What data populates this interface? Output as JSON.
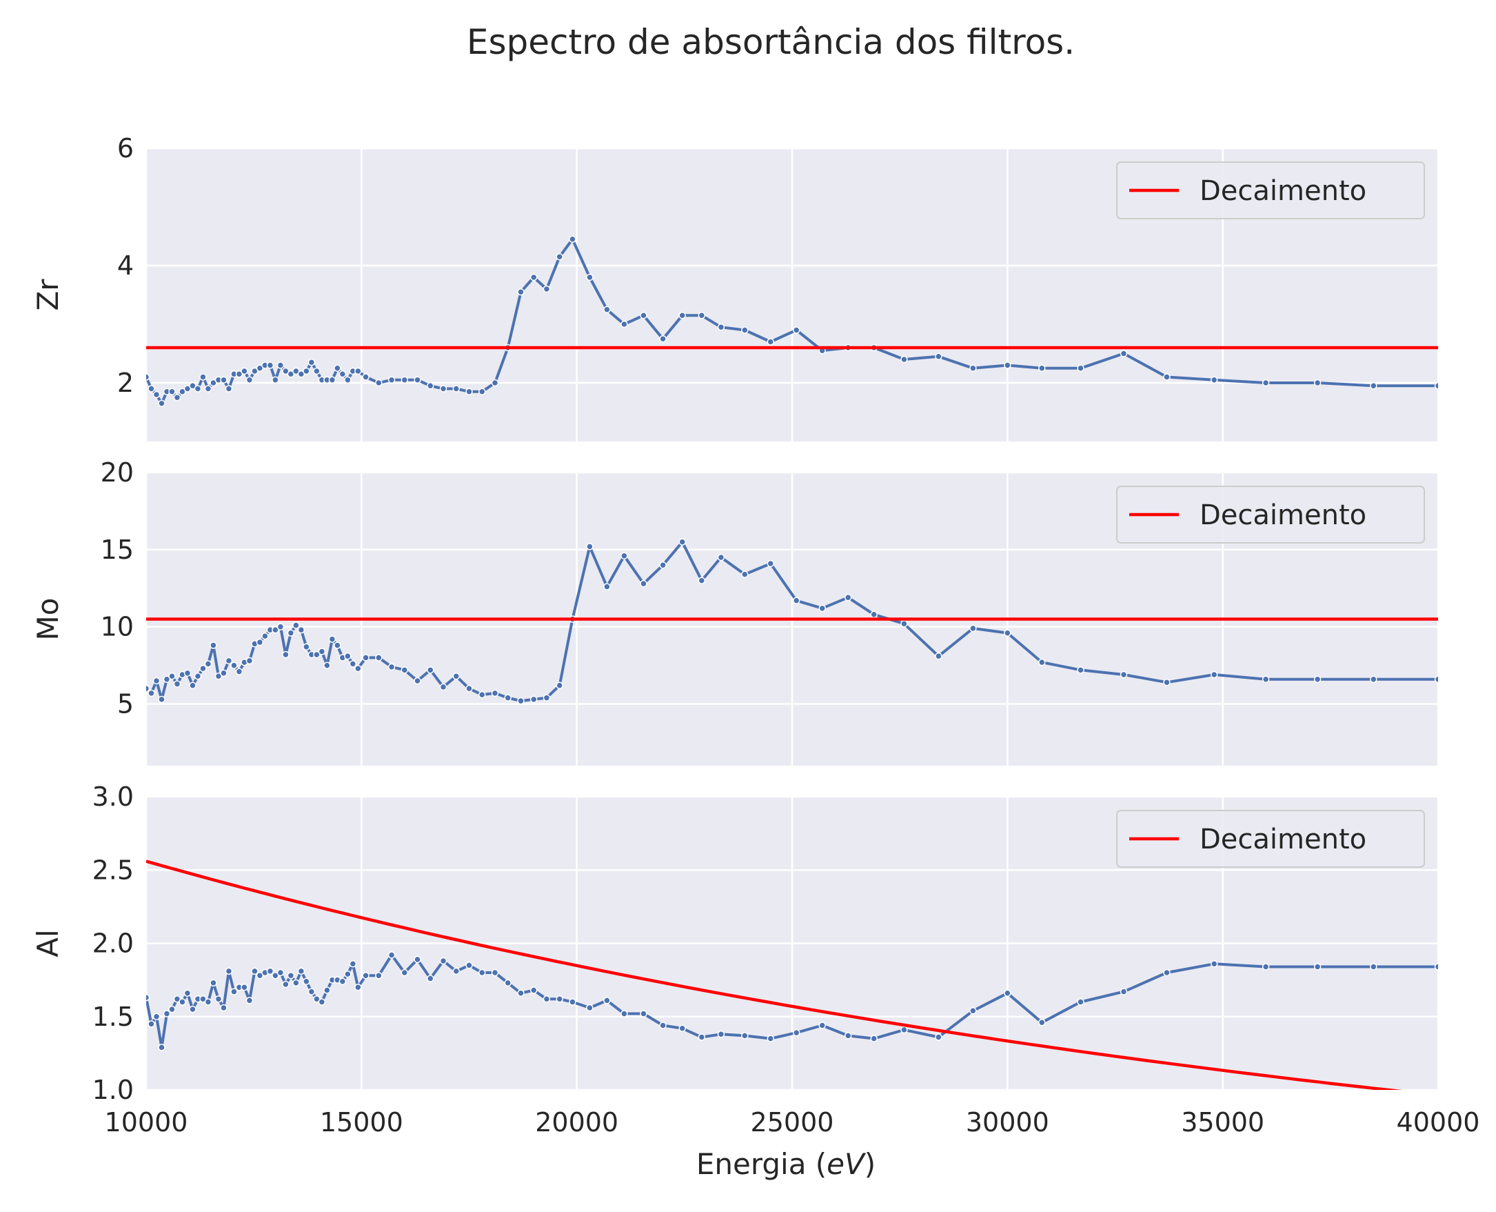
{
  "chart_data": {
    "type": "line",
    "title": "Espectro de absortância dos filtros.",
    "xlabel": "Energia (eV)",
    "xlabel_parts": {
      "prefix": "Energia (",
      "unit": "eV",
      "suffix": ")"
    },
    "xlim": [
      10000,
      40000
    ],
    "xticks": [
      10000,
      15000,
      20000,
      25000,
      30000,
      35000,
      40000
    ],
    "grid": true,
    "legend_position": "upper right",
    "colors": {
      "data": "#4c72b0",
      "decay": "#ff0000",
      "panel_bg": "#eaeaf2",
      "grid": "#ffffff"
    },
    "panels": [
      {
        "ylabel": "Zr",
        "ylim": [
          1,
          6
        ],
        "yticks": [
          2,
          4,
          6
        ],
        "legend": "Decaimento",
        "decay": {
          "kind": "constant",
          "value": 2.6
        },
        "series": [
          {
            "x": [
              10000,
              10120,
              10240,
              10360,
              10480,
              10600,
              10720,
              10840,
              10960,
              11080,
              11200,
              11320,
              11440,
              11560,
              11680,
              11800,
              11920,
              12040,
              12160,
              12280,
              12400,
              12520,
              12640,
              12760,
              12880,
              13000,
              13120,
              13240,
              13360,
              13480,
              13600,
              13720,
              13840,
              13960,
              14080,
              14200,
              14320,
              14440,
              14560,
              14680,
              14800,
              14920,
              15100,
              15400,
              15700,
              16000,
              16300,
              16600,
              16900,
              17200,
              17500,
              17800,
              18100,
              18400,
              18700,
              19000,
              19300,
              19600,
              19900,
              20300,
              20700,
              21100,
              21550,
              22000,
              22450,
              22900,
              23350,
              23900,
              24500,
              25100,
              25700,
              26300,
              26900,
              27600,
              28400,
              29200,
              30000,
              30800,
              31700,
              32700,
              33700,
              34800,
              36000,
              37200,
              38500,
              40000
            ],
            "y": [
              2.1,
              1.9,
              1.8,
              1.65,
              1.85,
              1.85,
              1.75,
              1.85,
              1.9,
              1.95,
              1.9,
              2.1,
              1.9,
              2.0,
              2.05,
              2.05,
              1.9,
              2.15,
              2.15,
              2.2,
              2.05,
              2.2,
              2.25,
              2.3,
              2.3,
              2.05,
              2.3,
              2.2,
              2.15,
              2.2,
              2.15,
              2.2,
              2.35,
              2.2,
              2.05,
              2.05,
              2.05,
              2.25,
              2.15,
              2.05,
              2.2,
              2.2,
              2.1,
              2.0,
              2.05,
              2.05,
              2.05,
              1.95,
              1.9,
              1.9,
              1.85,
              1.85,
              2.0,
              2.6,
              3.55,
              3.8,
              3.6,
              4.15,
              4.45,
              3.8,
              3.25,
              3.0,
              3.15,
              2.75,
              3.15,
              3.15,
              2.95,
              2.9,
              2.7,
              2.9,
              2.55,
              2.6,
              2.6,
              2.4,
              2.45,
              2.25,
              2.3,
              2.25,
              2.25,
              2.5,
              2.1,
              2.05,
              2.0,
              2.0,
              1.95,
              1.95
            ]
          }
        ]
      },
      {
        "ylabel": "Mo",
        "ylim": [
          1,
          20
        ],
        "yticks": [
          5,
          10,
          15,
          20
        ],
        "legend": "Decaimento",
        "decay": {
          "kind": "constant",
          "value": 10.5
        },
        "series": [
          {
            "x": [
              10000,
              10120,
              10240,
              10360,
              10480,
              10600,
              10720,
              10840,
              10960,
              11080,
              11200,
              11320,
              11440,
              11560,
              11680,
              11800,
              11920,
              12040,
              12160,
              12280,
              12400,
              12520,
              12640,
              12760,
              12880,
              13000,
              13120,
              13240,
              13360,
              13480,
              13600,
              13720,
              13840,
              13960,
              14080,
              14200,
              14320,
              14440,
              14560,
              14680,
              14800,
              14920,
              15100,
              15400,
              15700,
              16000,
              16300,
              16600,
              16900,
              17200,
              17500,
              17800,
              18100,
              18400,
              18700,
              19000,
              19300,
              19600,
              19900,
              20300,
              20700,
              21100,
              21550,
              22000,
              22450,
              22900,
              23350,
              23900,
              24500,
              25100,
              25700,
              26300,
              26900,
              27600,
              28400,
              29200,
              30000,
              30800,
              31700,
              32700,
              33700,
              34800,
              36000,
              37200,
              38500,
              40000
            ],
            "y": [
              6.0,
              5.7,
              6.5,
              5.3,
              6.6,
              6.8,
              6.3,
              6.9,
              7.0,
              6.2,
              6.8,
              7.3,
              7.6,
              8.8,
              6.8,
              7.0,
              7.8,
              7.5,
              7.1,
              7.7,
              7.8,
              8.9,
              9.0,
              9.4,
              9.8,
              9.8,
              10.0,
              8.2,
              9.6,
              10.1,
              9.8,
              8.7,
              8.2,
              8.2,
              8.4,
              7.5,
              9.2,
              8.8,
              8.0,
              8.1,
              7.6,
              7.3,
              8.0,
              8.0,
              7.4,
              7.2,
              6.5,
              7.2,
              6.1,
              6.8,
              6.0,
              5.6,
              5.7,
              5.4,
              5.2,
              5.3,
              5.4,
              6.2,
              10.5,
              15.2,
              12.6,
              14.6,
              12.8,
              14.0,
              15.5,
              13.0,
              14.5,
              13.4,
              14.1,
              11.7,
              11.2,
              11.9,
              10.8,
              10.2,
              8.1,
              9.9,
              9.6,
              7.7,
              7.2,
              6.9,
              6.4,
              6.9,
              6.6,
              6.6,
              6.6,
              6.6
            ]
          }
        ]
      },
      {
        "ylabel": "Al",
        "ylim": [
          1.0,
          3.0
        ],
        "yticks": [
          1.0,
          1.5,
          2.0,
          2.5,
          3.0
        ],
        "legend": "Decaimento",
        "decay": {
          "kind": "exponential",
          "x0": 10000,
          "y0": 2.56,
          "rate_per_eV": 3.26e-05
        },
        "series": [
          {
            "x": [
              10000,
              10120,
              10240,
              10360,
              10480,
              10600,
              10720,
              10840,
              10960,
              11080,
              11200,
              11320,
              11440,
              11560,
              11680,
              11800,
              11920,
              12040,
              12160,
              12280,
              12400,
              12520,
              12640,
              12760,
              12880,
              13000,
              13120,
              13240,
              13360,
              13480,
              13600,
              13720,
              13840,
              13960,
              14080,
              14200,
              14320,
              14440,
              14560,
              14680,
              14800,
              14920,
              15100,
              15400,
              15700,
              16000,
              16300,
              16600,
              16900,
              17200,
              17500,
              17800,
              18100,
              18400,
              18700,
              19000,
              19300,
              19600,
              19900,
              20300,
              20700,
              21100,
              21550,
              22000,
              22450,
              22900,
              23350,
              23900,
              24500,
              25100,
              25700,
              26300,
              26900,
              27600,
              28400,
              29200,
              30000,
              30800,
              31700,
              32700,
              33700,
              34800,
              36000,
              37200,
              38500,
              40000
            ],
            "y": [
              1.63,
              1.45,
              1.5,
              1.29,
              1.52,
              1.55,
              1.62,
              1.6,
              1.66,
              1.55,
              1.62,
              1.62,
              1.6,
              1.73,
              1.62,
              1.56,
              1.81,
              1.67,
              1.7,
              1.7,
              1.61,
              1.81,
              1.78,
              1.8,
              1.81,
              1.78,
              1.8,
              1.72,
              1.78,
              1.73,
              1.81,
              1.74,
              1.67,
              1.62,
              1.6,
              1.68,
              1.75,
              1.75,
              1.74,
              1.79,
              1.86,
              1.7,
              1.78,
              1.78,
              1.92,
              1.8,
              1.89,
              1.76,
              1.88,
              1.81,
              1.85,
              1.8,
              1.8,
              1.73,
              1.66,
              1.68,
              1.62,
              1.62,
              1.6,
              1.56,
              1.61,
              1.52,
              1.52,
              1.44,
              1.42,
              1.36,
              1.38,
              1.37,
              1.35,
              1.39,
              1.44,
              1.37,
              1.35,
              1.41,
              1.36,
              1.54,
              1.66,
              1.46,
              1.6,
              1.67,
              1.8,
              1.86,
              1.84,
              1.84,
              1.84,
              1.84
            ]
          }
        ]
      }
    ]
  }
}
